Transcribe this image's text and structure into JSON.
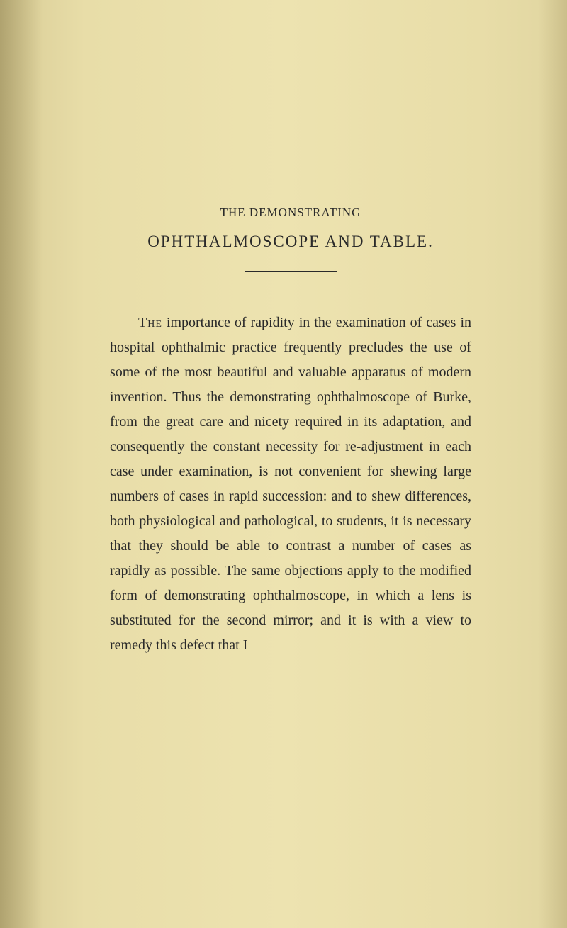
{
  "heading": {
    "line1": "THE DEMONSTRATING",
    "line2": "OPHTHALMOSCOPE AND TABLE."
  },
  "body": {
    "first_word": "The",
    "text": " importance of rapidity in the examination of cases in hospital ophthalmic practice frequently precludes the use of some of the most beautiful and valuable apparatus of modern invention. Thus the demonstrating ophthalmoscope of Burke, from the great care and nicety required in its adaptation, and consequently the constant necessity for re-adjustment in each case under examination, is not convenient for shewing large numbers of cases in rapid succession: and to shew differences, both physiological and pathological, to students, it is necessary that they should be able to contrast a number of cases as rapidly as possible. The same objections apply to the modified form of demonstrating ophthalmoscope, in which a lens is substituted for the second mirror; and it is with a view to remedy this defect that I"
  },
  "style": {
    "page_bg": "#e8dda8",
    "text_color": "#2a2a2a",
    "body_fontsize": 20,
    "heading_small_fontsize": 17,
    "heading_large_fontsize": 23,
    "line_height": 1.75,
    "divider_width": 130
  }
}
